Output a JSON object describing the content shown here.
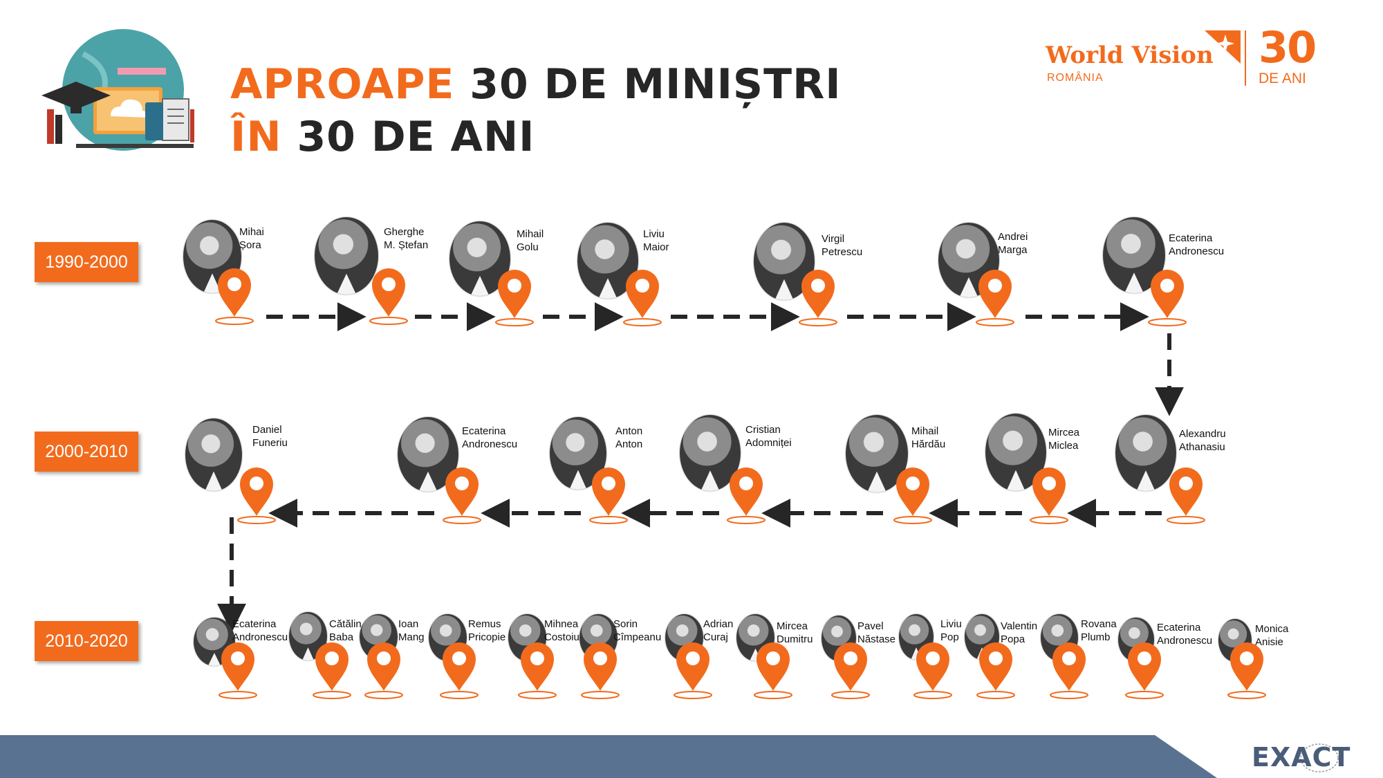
{
  "header": {
    "title_line1_accent": "APROAPE",
    "title_line1_rest": "30 DE MINIȘTRI",
    "title_line2_accent": "ÎN",
    "title_line2_rest": "30 DE ANI",
    "icon": "education-illustration-icon"
  },
  "brand": {
    "name": "World Vision",
    "country": "ROMÂNIA",
    "anniversary_number": "30",
    "anniversary_text": "DE ANI"
  },
  "footer": {
    "logo_text": "EXACT"
  },
  "colors": {
    "accent": "#f26b1d",
    "text": "#262626",
    "footer": "#5a7291"
  },
  "decades": [
    {
      "label": "1990-2000",
      "ministers": [
        {
          "line1": "Mihai",
          "line2": "Șora"
        },
        {
          "line1": "Gherghe",
          "line2": "M. Ștefan"
        },
        {
          "line1": "Mihail",
          "line2": "Golu"
        },
        {
          "line1": "Liviu",
          "line2": "Maior"
        },
        {
          "line1": "Virgil",
          "line2": "Petrescu"
        },
        {
          "line1": "Andrei",
          "line2": "Marga"
        },
        {
          "line1": "Ecaterina",
          "line2": "Andronescu"
        }
      ]
    },
    {
      "label": "2000-2010",
      "ministers": [
        {
          "line1": "Daniel",
          "line2": "Funeriu"
        },
        {
          "line1": "Ecaterina",
          "line2": "Andronescu"
        },
        {
          "line1": "Anton",
          "line2": "Anton"
        },
        {
          "line1": "Cristian",
          "line2": "Adomniței"
        },
        {
          "line1": "Mihail",
          "line2": "Hărdău"
        },
        {
          "line1": "Mircea",
          "line2": "Miclea"
        },
        {
          "line1": "Alexandru",
          "line2": "Athanasiu"
        }
      ]
    },
    {
      "label": "2010-2020",
      "ministers": [
        {
          "line1": "Ecaterina",
          "line2": "Andronescu"
        },
        {
          "line1": "Cătălin",
          "line2": "Baba"
        },
        {
          "line1": "Ioan",
          "line2": "Mang"
        },
        {
          "line1": "Remus",
          "line2": "Pricopie"
        },
        {
          "line1": "Mihnea",
          "line2": "Costoiu"
        },
        {
          "line1": "Sorin",
          "line2": "Cîmpeanu"
        },
        {
          "line1": "Adrian",
          "line2": "Curaj"
        },
        {
          "line1": "Mircea",
          "line2": "Dumitru"
        },
        {
          "line1": "Pavel",
          "line2": "Năstase"
        },
        {
          "line1": "Liviu",
          "line2": "Pop"
        },
        {
          "line1": "Valentin",
          "line2": "Popa"
        },
        {
          "line1": "Rovana",
          "line2": "Plumb"
        },
        {
          "line1": "Ecaterina",
          "line2": "Andronescu"
        },
        {
          "line1": "Monica",
          "line2": "Anisie"
        }
      ]
    }
  ]
}
